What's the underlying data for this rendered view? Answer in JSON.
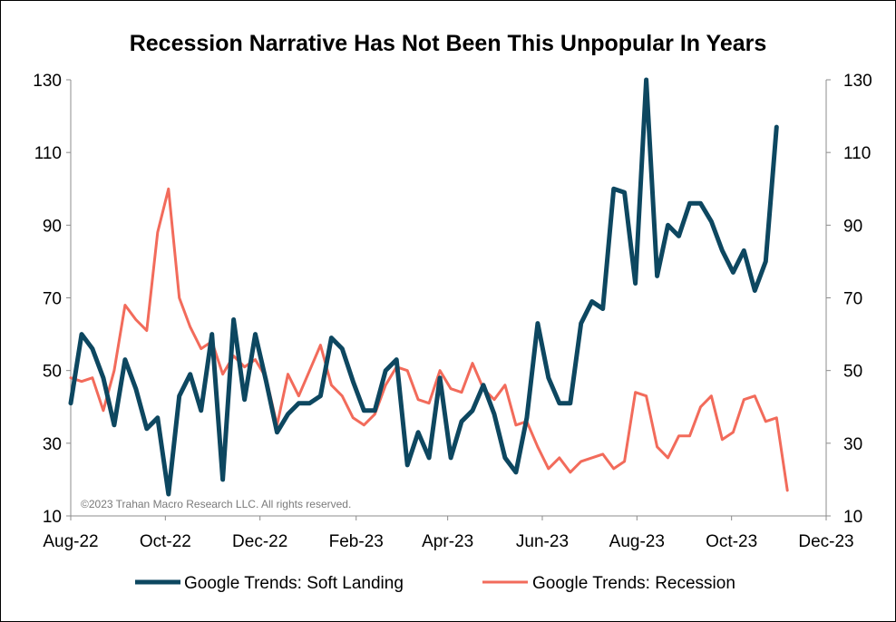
{
  "chart_data": {
    "type": "line",
    "title": "Recession Narrative Has Not Been This Unpopular In Years",
    "ylim": [
      10,
      130
    ],
    "yticks": [
      "10",
      "30",
      "50",
      "70",
      "90",
      "110",
      "130"
    ],
    "y2ticks": [
      "10",
      "30",
      "50",
      "70",
      "90",
      "110",
      "130"
    ],
    "xlim": [
      "2022-08-01",
      "2023-12-01"
    ],
    "xticks": [
      {
        "date": "2022-08-01",
        "label": "Aug-22"
      },
      {
        "date": "2022-10-01",
        "label": "Oct-22"
      },
      {
        "date": "2022-12-01",
        "label": "Dec-22"
      },
      {
        "date": "2023-02-01",
        "label": "Feb-23"
      },
      {
        "date": "2023-04-01",
        "label": "Apr-23"
      },
      {
        "date": "2023-06-01",
        "label": "Jun-23"
      },
      {
        "date": "2023-08-01",
        "label": "Aug-23"
      },
      {
        "date": "2023-10-01",
        "label": "Oct-23"
      },
      {
        "date": "2023-12-01",
        "label": "Dec-23"
      }
    ],
    "annotation": "©2023 Trahan Macro Research LLC. All rights reserved.",
    "legend_position": "bottom",
    "x": [
      "2022-08-01",
      "2022-08-08",
      "2022-08-15",
      "2022-08-22",
      "2022-08-29",
      "2022-09-05",
      "2022-09-12",
      "2022-09-19",
      "2022-09-26",
      "2022-10-03",
      "2022-10-10",
      "2022-10-17",
      "2022-10-24",
      "2022-10-31",
      "2022-11-07",
      "2022-11-14",
      "2022-11-21",
      "2022-11-28",
      "2022-12-05",
      "2022-12-12",
      "2022-12-19",
      "2022-12-26",
      "2023-01-02",
      "2023-01-09",
      "2023-01-16",
      "2023-01-23",
      "2023-01-30",
      "2023-02-06",
      "2023-02-13",
      "2023-02-20",
      "2023-02-27",
      "2023-03-06",
      "2023-03-13",
      "2023-03-20",
      "2023-03-27",
      "2023-04-03",
      "2023-04-10",
      "2023-04-17",
      "2023-04-24",
      "2023-05-01",
      "2023-05-08",
      "2023-05-15",
      "2023-05-22",
      "2023-05-29",
      "2023-06-05",
      "2023-06-12",
      "2023-06-19",
      "2023-06-26",
      "2023-07-03",
      "2023-07-10",
      "2023-07-17",
      "2023-07-24",
      "2023-07-31",
      "2023-08-07",
      "2023-08-14",
      "2023-08-21",
      "2023-08-28",
      "2023-09-04",
      "2023-09-11",
      "2023-09-18",
      "2023-09-25",
      "2023-10-02",
      "2023-10-09",
      "2023-10-16",
      "2023-10-23",
      "2023-10-30",
      "2023-11-06"
    ],
    "series": [
      {
        "name": "Google Trends: Soft Landing",
        "color": "#0d4760",
        "values": [
          41,
          60,
          56,
          48,
          35,
          53,
          45,
          34,
          37,
          16,
          43,
          49,
          39,
          60,
          20,
          64,
          42,
          60,
          47,
          33,
          38,
          41,
          41,
          43,
          59,
          56,
          47,
          39,
          39,
          50,
          53,
          24,
          33,
          26,
          48,
          26,
          36,
          39,
          46,
          38,
          26,
          22,
          37,
          63,
          48,
          41,
          41,
          63,
          69,
          67,
          100,
          99,
          74,
          130,
          76,
          90,
          87,
          96,
          96,
          91,
          83,
          77,
          83,
          72,
          80,
          117,
          null
        ]
      },
      {
        "name": "Google Trends: Recession",
        "color": "#f26b5b",
        "values": [
          48,
          47,
          48,
          39,
          50,
          68,
          64,
          61,
          88,
          100,
          70,
          62,
          56,
          58,
          49,
          54,
          51,
          53,
          48,
          35,
          49,
          43,
          50,
          57,
          46,
          43,
          37,
          35,
          38,
          46,
          51,
          50,
          42,
          41,
          50,
          45,
          44,
          52,
          45,
          42,
          46,
          35,
          36,
          29,
          23,
          26,
          22,
          25,
          26,
          27,
          23,
          25,
          44,
          43,
          29,
          26,
          32,
          32,
          40,
          43,
          31,
          33,
          42,
          43,
          36,
          37,
          17
        ]
      }
    ]
  }
}
